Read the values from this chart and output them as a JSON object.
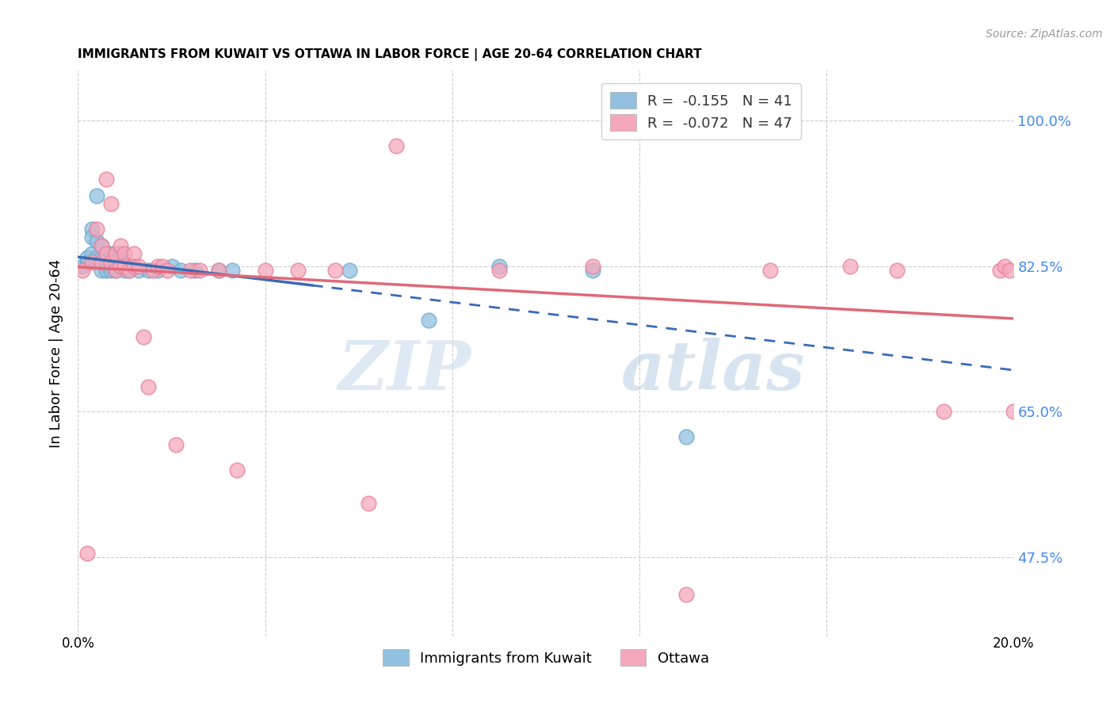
{
  "title": "IMMIGRANTS FROM KUWAIT VS OTTAWA IN LABOR FORCE | AGE 20-64 CORRELATION CHART",
  "source": "Source: ZipAtlas.com",
  "ylabel": "In Labor Force | Age 20-64",
  "ytick_labels": [
    "100.0%",
    "82.5%",
    "65.0%",
    "47.5%"
  ],
  "ytick_values": [
    1.0,
    0.825,
    0.65,
    0.475
  ],
  "xlim": [
    0.0,
    0.2
  ],
  "ylim": [
    0.38,
    1.06
  ],
  "blue_R": "-0.155",
  "blue_N": "41",
  "pink_R": "-0.072",
  "pink_N": "47",
  "legend_label_blue": "Immigrants from Kuwait",
  "legend_label_pink": "Ottawa",
  "blue_color": "#92c0e0",
  "pink_color": "#f5a8bc",
  "blue_edge_color": "#6aaacf",
  "pink_edge_color": "#e88098",
  "blue_line_color": "#3a6ab5",
  "pink_line_color": "#e06878",
  "watermark_zip": "ZIP",
  "watermark_atlas": "atlas",
  "blue_x": [
    0.001,
    0.002,
    0.002,
    0.003,
    0.003,
    0.003,
    0.004,
    0.004,
    0.004,
    0.005,
    0.005,
    0.005,
    0.006,
    0.006,
    0.006,
    0.007,
    0.007,
    0.007,
    0.007,
    0.008,
    0.008,
    0.008,
    0.009,
    0.009,
    0.01,
    0.01,
    0.011,
    0.012,
    0.013,
    0.015,
    0.017,
    0.02,
    0.022,
    0.025,
    0.03,
    0.033,
    0.058,
    0.075,
    0.09,
    0.11,
    0.13
  ],
  "blue_y": [
    0.825,
    0.83,
    0.835,
    0.87,
    0.86,
    0.84,
    0.91,
    0.855,
    0.835,
    0.85,
    0.835,
    0.82,
    0.84,
    0.83,
    0.82,
    0.84,
    0.83,
    0.825,
    0.82,
    0.835,
    0.825,
    0.82,
    0.84,
    0.825,
    0.828,
    0.82,
    0.82,
    0.825,
    0.82,
    0.82,
    0.82,
    0.825,
    0.82,
    0.82,
    0.82,
    0.82,
    0.82,
    0.76,
    0.825,
    0.82,
    0.62
  ],
  "pink_x": [
    0.001,
    0.002,
    0.003,
    0.004,
    0.005,
    0.005,
    0.006,
    0.006,
    0.007,
    0.007,
    0.008,
    0.008,
    0.009,
    0.009,
    0.01,
    0.01,
    0.011,
    0.012,
    0.012,
    0.013,
    0.014,
    0.015,
    0.016,
    0.017,
    0.018,
    0.019,
    0.021,
    0.024,
    0.026,
    0.03,
    0.034,
    0.04,
    0.047,
    0.055,
    0.062,
    0.068,
    0.09,
    0.11,
    0.13,
    0.148,
    0.165,
    0.175,
    0.185,
    0.197,
    0.198,
    0.199,
    0.2
  ],
  "pink_y": [
    0.82,
    0.48,
    0.83,
    0.87,
    0.85,
    0.83,
    0.93,
    0.84,
    0.9,
    0.83,
    0.84,
    0.82,
    0.85,
    0.825,
    0.84,
    0.825,
    0.82,
    0.84,
    0.825,
    0.825,
    0.74,
    0.68,
    0.82,
    0.825,
    0.825,
    0.82,
    0.61,
    0.82,
    0.82,
    0.82,
    0.58,
    0.82,
    0.82,
    0.82,
    0.54,
    0.97,
    0.82,
    0.825,
    0.43,
    0.82,
    0.825,
    0.82,
    0.65,
    0.82,
    0.825,
    0.82,
    0.65
  ],
  "blue_line_x0": 0.0,
  "blue_line_x_solid_end": 0.05,
  "blue_line_x1": 0.2,
  "blue_line_y0": 0.836,
  "blue_line_y1": 0.7,
  "pink_line_x0": 0.0,
  "pink_line_x1": 0.2,
  "pink_line_y0": 0.824,
  "pink_line_y1": 0.762
}
